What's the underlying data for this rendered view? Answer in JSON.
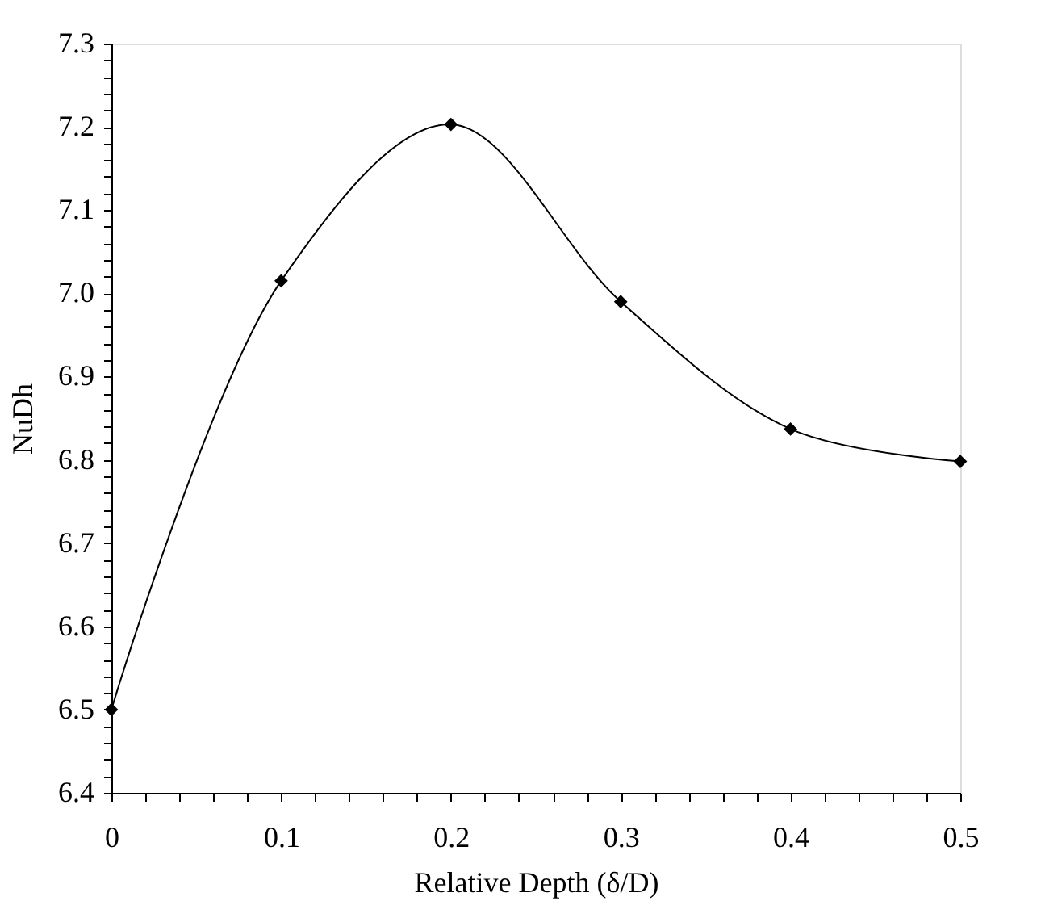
{
  "chart_data": {
    "type": "line",
    "xlabel": "Relative Depth (δ/D)",
    "ylabel": "NuDh",
    "x": [
      0,
      0.1,
      0.2,
      0.3,
      0.4,
      0.5
    ],
    "series": [
      {
        "color": "#000000",
        "values": [
          6.5,
          7.015,
          7.203,
          6.99,
          6.837,
          6.798
        ]
      }
    ],
    "marker": "diamond",
    "line_style": "solid",
    "legend": false,
    "grid": false,
    "xlim": [
      0,
      0.5
    ],
    "ylim": [
      6.4,
      7.3
    ],
    "xticks": [
      0,
      {
        "value": 0.02,
        "label": null
      },
      {
        "value": 0.04,
        "label": null
      },
      {
        "value": 0.06,
        "label": null
      },
      {
        "value": 0.08,
        "label": null
      },
      0.1,
      {
        "value": 0.12,
        "label": null
      },
      {
        "value": 0.14,
        "label": null
      },
      {
        "value": 0.16,
        "label": null
      },
      {
        "value": 0.18,
        "label": null
      },
      0.2,
      {
        "value": 0.22,
        "label": null
      },
      {
        "value": 0.24,
        "label": null
      },
      {
        "value": 0.26,
        "label": null
      },
      {
        "value": 0.28,
        "label": null
      },
      0.3,
      {
        "value": 0.32,
        "label": null
      },
      {
        "value": 0.34,
        "label": null
      },
      {
        "value": 0.36,
        "label": null
      },
      {
        "value": 0.38,
        "label": null
      },
      0.4,
      {
        "value": 0.42,
        "label": null
      },
      {
        "value": 0.44,
        "label": null
      },
      {
        "value": 0.46,
        "label": null
      },
      {
        "value": 0.48,
        "label": null
      },
      0.5
    ],
    "yticks": [
      {
        "value": 6.4,
        "label": "6.4"
      },
      {
        "value": 6.42,
        "label": null
      },
      {
        "value": 6.44,
        "label": null
      },
      {
        "value": 6.46,
        "label": null
      },
      {
        "value": 6.48,
        "label": null
      },
      {
        "value": 6.5,
        "label": "6.5"
      },
      {
        "value": 6.52,
        "label": null
      },
      {
        "value": 6.54,
        "label": null
      },
      {
        "value": 6.56,
        "label": null
      },
      {
        "value": 6.58,
        "label": null
      },
      {
        "value": 6.6,
        "label": "6.6"
      },
      {
        "value": 6.62,
        "label": null
      },
      {
        "value": 6.64,
        "label": null
      },
      {
        "value": 6.66,
        "label": null
      },
      {
        "value": 6.68,
        "label": null
      },
      {
        "value": 6.7,
        "label": "6.7"
      },
      {
        "value": 6.72,
        "label": null
      },
      {
        "value": 6.74,
        "label": null
      },
      {
        "value": 6.76,
        "label": null
      },
      {
        "value": 6.78,
        "label": null
      },
      {
        "value": 6.8,
        "label": "6.8"
      },
      {
        "value": 6.82,
        "label": null
      },
      {
        "value": 6.84,
        "label": null
      },
      {
        "value": 6.86,
        "label": null
      },
      {
        "value": 6.88,
        "label": null
      },
      {
        "value": 6.9,
        "label": "6.9"
      },
      {
        "value": 6.92,
        "label": null
      },
      {
        "value": 6.94,
        "label": null
      },
      {
        "value": 6.96,
        "label": null
      },
      {
        "value": 6.98,
        "label": null
      },
      {
        "value": 7.0,
        "label": "7.0"
      },
      {
        "value": 7.02,
        "label": null
      },
      {
        "value": 7.04,
        "label": null
      },
      {
        "value": 7.06,
        "label": null
      },
      {
        "value": 7.08,
        "label": null
      },
      {
        "value": 7.1,
        "label": "7.1"
      },
      {
        "value": 7.12,
        "label": null
      },
      {
        "value": 7.14,
        "label": null
      },
      {
        "value": 7.16,
        "label": null
      },
      {
        "value": 7.18,
        "label": null
      },
      {
        "value": 7.2,
        "label": "7.2"
      },
      {
        "value": 7.22,
        "label": null
      },
      {
        "value": 7.24,
        "label": null
      },
      {
        "value": 7.26,
        "label": null
      },
      {
        "value": 7.28,
        "label": null
      },
      {
        "value": 7.3,
        "label": "7.3"
      }
    ]
  }
}
